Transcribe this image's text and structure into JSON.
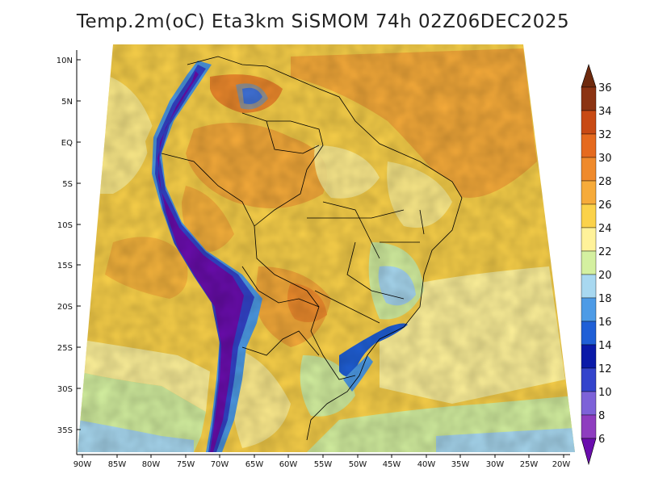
{
  "title": "Temp.2m(oC) Eta3km SiSMOM 74h 02Z06DEC2025",
  "variable": "Temp.2m",
  "units": "oC",
  "latitude_labels": [
    "10N",
    "5N",
    "EQ",
    "5S",
    "10S",
    "15S",
    "20S",
    "25S",
    "30S",
    "35S"
  ],
  "longitude_labels": [
    "90W",
    "85W",
    "80W",
    "75W",
    "70W",
    "65W",
    "60W",
    "55W",
    "50W",
    "45W",
    "40W",
    "35W",
    "30W",
    "25W",
    "20W"
  ],
  "colorbar": {
    "labels": [
      "36",
      "34",
      "32",
      "30",
      "28",
      "26",
      "24",
      "22",
      "20",
      "18",
      "16",
      "14",
      "12",
      "10",
      "8",
      "6"
    ],
    "colors": {
      "c6": "#6a0dad",
      "c8": "#8e3dbf",
      "c10": "#7d62d8",
      "c12": "#3344cc",
      "c14": "#0a1aa8",
      "c16": "#1f5fd6",
      "c18": "#4d9be6",
      "c20": "#a8d8f0",
      "c22": "#d4f0a0",
      "c24": "#fff29a",
      "c26": "#fbd24a",
      "c28": "#f6ab3a",
      "c30": "#ef8a2c",
      "c32": "#e56a1e",
      "c34": "#c84a14",
      "c36": "#8b3312"
    }
  }
}
